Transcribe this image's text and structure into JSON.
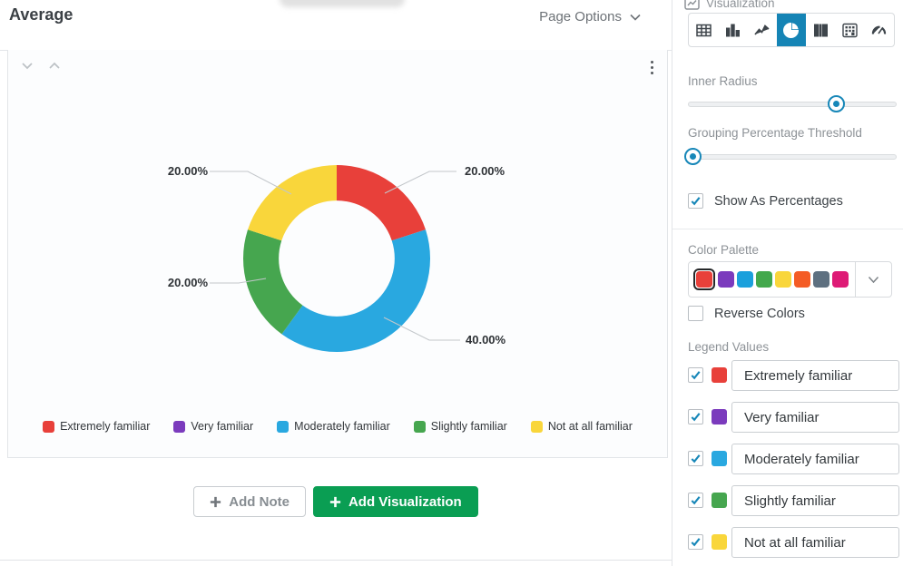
{
  "header": {
    "title": "Average",
    "page_options_label": "Page Options"
  },
  "card": {
    "legend": [
      {
        "label": "Extremely familiar",
        "color": "#E8403A"
      },
      {
        "label": "Very familiar",
        "color": "#7B3BBD"
      },
      {
        "label": "Moderately familiar",
        "color": "#29A8E0"
      },
      {
        "label": "Slightly familiar",
        "color": "#46A64F"
      },
      {
        "label": "Not at all familiar",
        "color": "#F9D63B"
      }
    ]
  },
  "actions": {
    "add_note_label": "Add Note",
    "add_visualization_label": "Add Visualization"
  },
  "sidebar": {
    "title": "Visualization",
    "chart_types": [
      "table",
      "bar",
      "line",
      "pie",
      "columns",
      "matrix",
      "gauge"
    ],
    "selected_chart_type": "pie",
    "inner_radius": {
      "label": "Inner Radius",
      "fraction": 0.71
    },
    "grouping_threshold": {
      "label": "Grouping Percentage Threshold",
      "fraction": 0.025
    },
    "show_as_percentages": {
      "label": "Show As Percentages",
      "checked": true
    },
    "color_palette": {
      "label": "Color Palette",
      "colors": [
        "#E8403A",
        "#7B3BBD",
        "#1BA0DC",
        "#43A84C",
        "#F9D63B",
        "#F45C25",
        "#5E7080",
        "#DE1B76"
      ],
      "selected_index": 0
    },
    "reverse_colors": {
      "label": "Reverse Colors",
      "checked": false
    },
    "legend_values": {
      "label": "Legend Values",
      "items": [
        {
          "label": "Extremely familiar",
          "color": "#E8403A",
          "checked": true
        },
        {
          "label": "Very familiar",
          "color": "#7B3BBD",
          "checked": true
        },
        {
          "label": "Moderately familiar",
          "color": "#29A8E0",
          "checked": true
        },
        {
          "label": "Slightly familiar",
          "color": "#46A64F",
          "checked": true
        },
        {
          "label": "Not at all familiar",
          "color": "#F9D63B",
          "checked": true
        }
      ]
    }
  },
  "chart_data": {
    "type": "pie",
    "subtype": "donut",
    "categories": [
      "Extremely familiar",
      "Very familiar",
      "Moderately familiar",
      "Slightly familiar",
      "Not at all familiar"
    ],
    "values": [
      20,
      0,
      40,
      20,
      20
    ],
    "colors": [
      "#E8403A",
      "#7B3BBD",
      "#29A8E0",
      "#46A64F",
      "#F9D63B"
    ],
    "point_labels": [
      {
        "slice": "Extremely familiar",
        "text": "20.00%",
        "position": "top-right"
      },
      {
        "slice": "Not at all familiar",
        "text": "20.00%",
        "position": "top-left"
      },
      {
        "slice": "Slightly familiar",
        "text": "20.00%",
        "position": "left"
      },
      {
        "slice": "Moderately familiar",
        "text": "40.00%",
        "position": "bottom-right"
      }
    ],
    "inner_radius_ratio": 0.62,
    "start_angle_deg": 0,
    "direction": "clockwise",
    "legend_position": "bottom",
    "show_as_percentages": true
  }
}
